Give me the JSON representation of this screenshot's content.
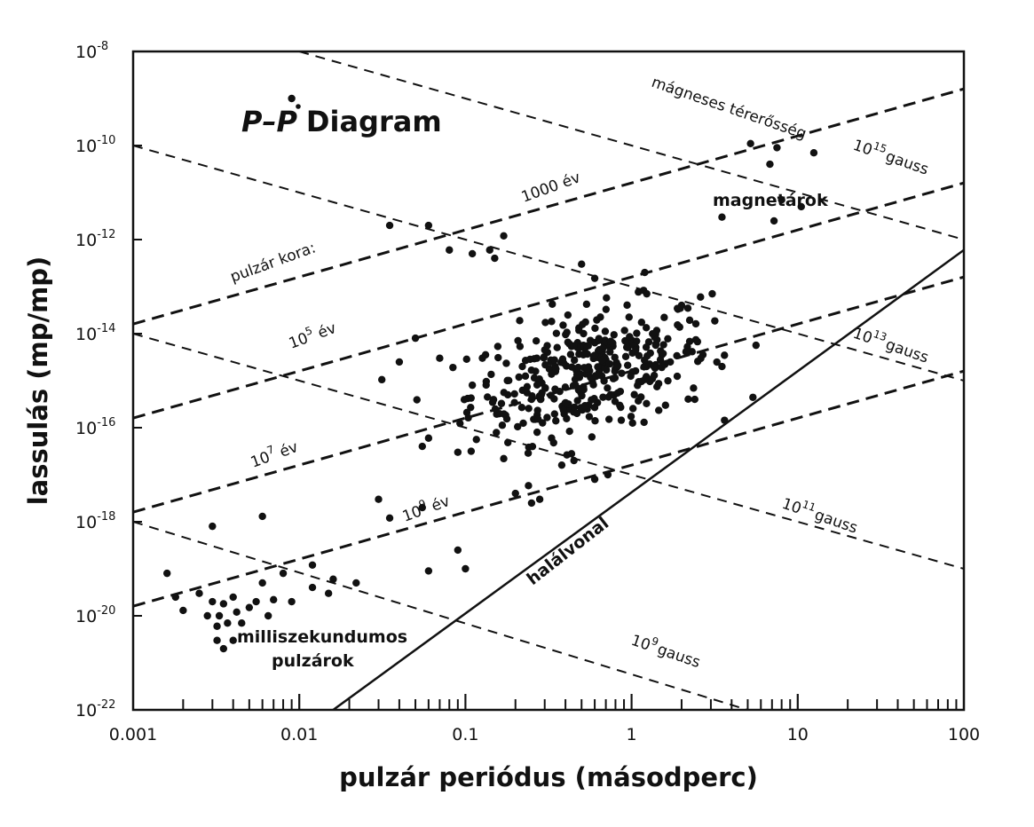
{
  "chart_data": {
    "type": "scatter",
    "title": "P–Ṗ Diagram",
    "title_main": "Diagram",
    "title_p": "P",
    "title_dash": "–",
    "title_pdot": "P",
    "xlabel": "pulzár periódus (másodperc)",
    "ylabel": "lassulás (mp/mp)",
    "x_scale": "log",
    "y_scale": "log",
    "xlim": [
      0.001,
      100
    ],
    "ylim": [
      1e-22,
      1e-08
    ],
    "x_ticks": [
      {
        "value": 0.001,
        "label": "0.001"
      },
      {
        "value": 0.01,
        "label": "0.01"
      },
      {
        "value": 0.1,
        "label": "0.1"
      },
      {
        "value": 1,
        "label": "1"
      },
      {
        "value": 10,
        "label": "10"
      },
      {
        "value": 100,
        "label": "100"
      }
    ],
    "y_ticks": [
      {
        "value": 1e-08,
        "base": "10",
        "exp": "-8"
      },
      {
        "value": 1e-10,
        "base": "10",
        "exp": "-10"
      },
      {
        "value": 1e-12,
        "base": "10",
        "exp": "-12"
      },
      {
        "value": 1e-14,
        "base": "10",
        "exp": "-14"
      },
      {
        "value": 1e-16,
        "base": "10",
        "exp": "-16"
      },
      {
        "value": 1e-18,
        "base": "10",
        "exp": "-18"
      },
      {
        "value": 1e-20,
        "base": "10",
        "exp": "-20"
      },
      {
        "value": 1e-22,
        "base": "10",
        "exp": "-22"
      }
    ],
    "age_lines": [
      {
        "age": "1000 év",
        "text": "1000 év",
        "base": "",
        "exp": "",
        "suffix": "",
        "points": [
          [
            0.001,
            1.6e-14
          ],
          [
            100,
            1.6e-09
          ]
        ]
      },
      {
        "age": "10^5 év",
        "text": "",
        "base": "10",
        "exp": "5",
        "suffix": " év",
        "points": [
          [
            0.001,
            1.6e-16
          ],
          [
            100,
            1.6e-11
          ]
        ]
      },
      {
        "age": "10^7 év",
        "text": "",
        "base": "10",
        "exp": "7",
        "suffix": " év",
        "points": [
          [
            0.001,
            1.6e-18
          ],
          [
            100,
            1.6e-13
          ]
        ]
      },
      {
        "age": "10^9 év",
        "text": "",
        "base": "10",
        "exp": "9",
        "suffix": " év",
        "points": [
          [
            0.001,
            1.6e-20
          ],
          [
            100,
            1.6e-15
          ]
        ]
      }
    ],
    "field_lines": [
      {
        "field": "10^15 gauss",
        "base": "10",
        "exp": "15",
        "suffix": "gauss",
        "points": [
          [
            0.01,
            1e-08
          ],
          [
            100,
            1e-12
          ]
        ]
      },
      {
        "field": "10^13 gauss",
        "base": "10",
        "exp": "13",
        "suffix": "gauss",
        "points": [
          [
            0.001,
            1e-10
          ],
          [
            100,
            1e-15
          ]
        ]
      },
      {
        "field": "10^11 gauss",
        "base": "10",
        "exp": "11",
        "suffix": "gauss",
        "points": [
          [
            0.001,
            1e-14
          ],
          [
            100,
            1e-19
          ]
        ]
      },
      {
        "field": "10^9 gauss",
        "base": "10",
        "exp": "9",
        "suffix": "gauss",
        "points": [
          [
            0.001,
            1e-18
          ],
          [
            5,
            1e-22
          ]
        ]
      }
    ],
    "death_line": {
      "label": "halálvonal",
      "points": [
        [
          0.016,
          1e-22
        ],
        [
          100,
          6e-13
        ]
      ]
    },
    "annotations": {
      "pulsar_age": "pulzár kora:",
      "field_strength": "mágneses térerősség",
      "magnetars": "magnetárok",
      "msp_line1": "milliszekundumos",
      "msp_line2": "pulzárok"
    },
    "points": [
      [
        0.009,
        1e-09
      ],
      [
        5.2,
        1.1e-10
      ],
      [
        7.5,
        9e-11
      ],
      [
        12.5,
        7e-11
      ],
      [
        6.8,
        4e-11
      ],
      [
        3.5,
        3e-12
      ],
      [
        8.0,
        7e-12
      ],
      [
        10.5,
        5e-12
      ],
      [
        7.2,
        2.5e-12
      ],
      [
        0.035,
        2e-12
      ],
      [
        0.06,
        2e-12
      ],
      [
        0.17,
        1.2e-12
      ],
      [
        0.08,
        6e-13
      ],
      [
        0.11,
        5e-13
      ],
      [
        0.14,
        6e-13
      ],
      [
        0.15,
        4e-13
      ],
      [
        0.04,
        2.5e-15
      ],
      [
        0.05,
        8e-15
      ],
      [
        0.07,
        3e-15
      ],
      [
        0.11,
        8e-16
      ],
      [
        0.22,
        2e-15
      ],
      [
        0.25,
        4e-16
      ],
      [
        0.38,
        1.6e-17
      ],
      [
        0.27,
        8e-17
      ],
      [
        0.25,
        2.5e-18
      ],
      [
        0.18,
        5e-16
      ],
      [
        0.33,
        6e-17
      ],
      [
        0.35,
        1.4e-16
      ],
      [
        0.45,
        2e-17
      ],
      [
        0.6,
        8e-18
      ],
      [
        0.72,
        1e-17
      ],
      [
        0.17,
        2.2e-17
      ],
      [
        0.055,
        4e-17
      ],
      [
        0.06,
        6e-17
      ],
      [
        0.09,
        3e-17
      ],
      [
        0.2,
        4e-18
      ],
      [
        0.28,
        3e-18
      ],
      [
        0.03,
        3e-18
      ],
      [
        0.035,
        1.2e-18
      ],
      [
        0.055,
        2e-18
      ],
      [
        0.012,
        1.2e-19
      ],
      [
        0.006,
        1.3e-18
      ],
      [
        0.003,
        8e-19
      ],
      [
        0.0016,
        8e-20
      ],
      [
        0.0018,
        2.5e-20
      ],
      [
        0.002,
        1.3e-20
      ],
      [
        0.0025,
        3e-20
      ],
      [
        0.0028,
        1e-20
      ],
      [
        0.003,
        2e-20
      ],
      [
        0.0032,
        6e-21
      ],
      [
        0.0033,
        1e-20
      ],
      [
        0.0035,
        1.8e-20
      ],
      [
        0.0037,
        7e-21
      ],
      [
        0.004,
        2.5e-20
      ],
      [
        0.0042,
        1.2e-20
      ],
      [
        0.0045,
        7e-21
      ],
      [
        0.005,
        1.5e-20
      ],
      [
        0.0055,
        2e-20
      ],
      [
        0.006,
        5e-20
      ],
      [
        0.0065,
        1e-20
      ],
      [
        0.007,
        2.2e-20
      ],
      [
        0.008,
        8e-20
      ],
      [
        0.009,
        2e-20
      ],
      [
        0.0035,
        2e-21
      ],
      [
        0.0032,
        3e-21
      ],
      [
        0.004,
        3e-21
      ],
      [
        0.015,
        3e-20
      ],
      [
        0.016,
        6e-20
      ],
      [
        0.012,
        4e-20
      ],
      [
        0.022,
        5e-20
      ],
      [
        0.06,
        9e-20
      ],
      [
        0.09,
        2.5e-19
      ],
      [
        0.1,
        1e-19
      ],
      [
        1.4,
        6e-15
      ],
      [
        1.6,
        3e-16
      ],
      [
        2.4,
        4e-16
      ],
      [
        2.6,
        6e-14
      ],
      [
        3.5,
        2e-15
      ],
      [
        0.5,
        3e-13
      ],
      [
        0.6,
        1.5e-13
      ],
      [
        1.2,
        2e-13
      ],
      [
        2.0,
        4e-14
      ]
    ],
    "cloud": {
      "center_log_x": -0.25,
      "center_log_y": -14.8,
      "sigma_log_x": 0.36,
      "sigma_log_y": 0.75,
      "count": 360
    }
  }
}
